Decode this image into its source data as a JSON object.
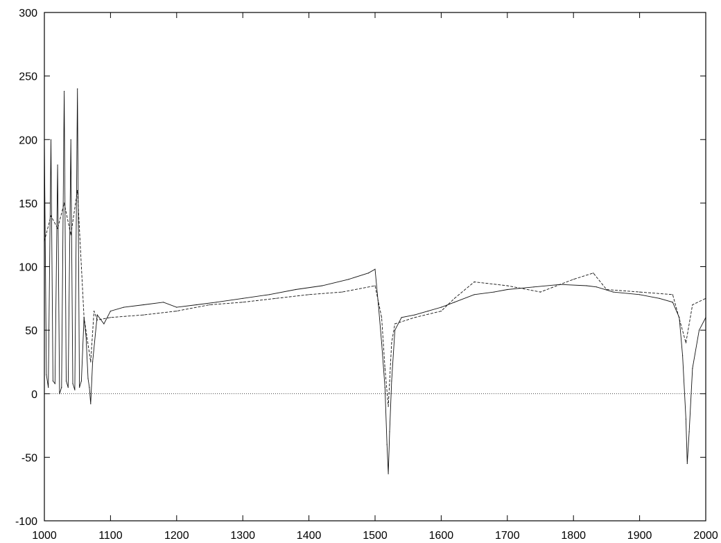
{
  "chart_data": {
    "type": "line",
    "title": "",
    "xlabel": "",
    "ylabel": "",
    "xlim": [
      1000,
      2000
    ],
    "ylim": [
      -100,
      300
    ],
    "x_ticks": [
      1000,
      1100,
      1200,
      1300,
      1400,
      1500,
      1600,
      1700,
      1800,
      1900,
      2000
    ],
    "y_ticks": [
      -100,
      -50,
      0,
      50,
      100,
      150,
      200,
      250,
      300
    ],
    "x_tick_labels": [
      "1000",
      "1100",
      "1200",
      "1300",
      "1400",
      "1500",
      "1600",
      "1700",
      "1800",
      "1900",
      "2000"
    ],
    "y_tick_labels": [
      "-100",
      "-50",
      "0",
      "50",
      "100",
      "150",
      "200",
      "250",
      "300"
    ],
    "grid": false,
    "legend": "none",
    "reference_line": {
      "y": 0,
      "style": "dotted"
    },
    "series": [
      {
        "style": "solid",
        "x": [
          1000,
          1003,
          1006,
          1010,
          1013,
          1016,
          1020,
          1023,
          1026,
          1030,
          1033,
          1036,
          1040,
          1043,
          1046,
          1050,
          1053,
          1056,
          1060,
          1063,
          1066,
          1068,
          1070,
          1073,
          1080,
          1090,
          1100,
          1120,
          1150,
          1180,
          1200,
          1230,
          1260,
          1300,
          1340,
          1380,
          1420,
          1460,
          1490,
          1500,
          1505,
          1510,
          1515,
          1518,
          1520,
          1522,
          1525,
          1530,
          1540,
          1560,
          1580,
          1600,
          1620,
          1650,
          1680,
          1700,
          1740,
          1780,
          1820,
          1835,
          1860,
          1900,
          1930,
          1950,
          1960,
          1965,
          1970,
          1972,
          1975,
          1980,
          1990,
          2000
        ],
        "y": [
          200,
          15,
          5,
          200,
          10,
          8,
          180,
          0,
          5,
          238,
          10,
          5,
          200,
          8,
          3,
          240,
          5,
          10,
          60,
          45,
          12,
          5,
          -8,
          25,
          62,
          55,
          65,
          68,
          70,
          72,
          68,
          70,
          72,
          75,
          78,
          82,
          85,
          90,
          95,
          98,
          70,
          40,
          5,
          -40,
          -63,
          -30,
          10,
          50,
          60,
          62,
          65,
          68,
          72,
          78,
          80,
          82,
          84,
          86,
          85,
          84,
          80,
          78,
          75,
          72,
          60,
          30,
          -20,
          -55,
          -30,
          20,
          50,
          60
        ]
      },
      {
        "style": "dashed",
        "x": [
          1000,
          1010,
          1020,
          1030,
          1040,
          1050,
          1060,
          1070,
          1075,
          1080,
          1100,
          1150,
          1200,
          1250,
          1300,
          1350,
          1400,
          1450,
          1500,
          1510,
          1515,
          1520,
          1525,
          1530,
          1560,
          1600,
          1620,
          1650,
          1700,
          1750,
          1800,
          1830,
          1850,
          1900,
          1950,
          1970,
          1980,
          2000
        ],
        "y": [
          120,
          140,
          130,
          150,
          125,
          160,
          60,
          25,
          65,
          58,
          60,
          62,
          65,
          70,
          72,
          75,
          78,
          80,
          85,
          60,
          20,
          -10,
          40,
          55,
          60,
          65,
          75,
          88,
          85,
          80,
          90,
          95,
          82,
          80,
          78,
          40,
          70,
          75
        ]
      }
    ]
  }
}
